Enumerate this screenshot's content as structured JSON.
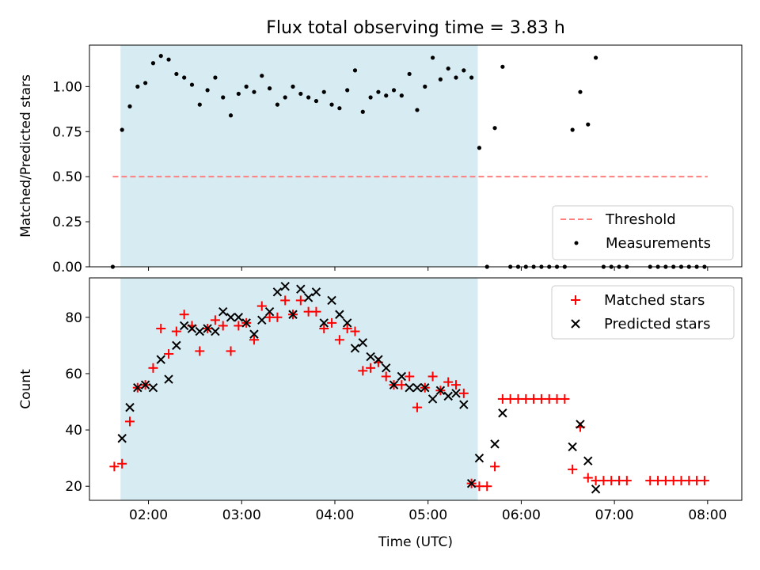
{
  "chart_data": [
    {
      "type": "scatter",
      "title": "Flux total observing time = 3.83 h",
      "xlabel": "",
      "ylabel": "Matched/Predicted stars",
      "xlim": [
        "01:22",
        "08:22"
      ],
      "ylim": [
        0,
        1.23
      ],
      "yticks": [
        0.0,
        0.25,
        0.5,
        0.75,
        1.0
      ],
      "ytick_labels": [
        "0.00",
        "0.25",
        "0.50",
        "0.75",
        "1.00"
      ],
      "shaded_window": [
        "01:42",
        "05:32"
      ],
      "threshold": {
        "name": "Threshold",
        "value": 0.5,
        "x_start": "01:37",
        "x_end": "08:00",
        "color": "#ff7f7f"
      },
      "series": [
        {
          "name": "Measurements",
          "color": "#000000",
          "points": [
            [
              "01:37",
              0.0
            ],
            [
              "01:43",
              0.76
            ],
            [
              "01:48",
              0.89
            ],
            [
              "01:53",
              1.0
            ],
            [
              "01:58",
              1.02
            ],
            [
              "02:03",
              1.13
            ],
            [
              "02:08",
              1.17
            ],
            [
              "02:13",
              1.15
            ],
            [
              "02:18",
              1.07
            ],
            [
              "02:23",
              1.05
            ],
            [
              "02:28",
              1.01
            ],
            [
              "02:33",
              0.9
            ],
            [
              "02:38",
              0.98
            ],
            [
              "02:43",
              1.05
            ],
            [
              "02:48",
              0.94
            ],
            [
              "02:53",
              0.84
            ],
            [
              "02:58",
              0.96
            ],
            [
              "03:03",
              1.0
            ],
            [
              "03:08",
              0.97
            ],
            [
              "03:13",
              1.06
            ],
            [
              "03:18",
              0.99
            ],
            [
              "03:23",
              0.9
            ],
            [
              "03:28",
              0.94
            ],
            [
              "03:33",
              1.0
            ],
            [
              "03:38",
              0.96
            ],
            [
              "03:43",
              0.94
            ],
            [
              "03:48",
              0.92
            ],
            [
              "03:53",
              0.97
            ],
            [
              "03:58",
              0.9
            ],
            [
              "04:03",
              0.88
            ],
            [
              "04:08",
              0.98
            ],
            [
              "04:13",
              1.09
            ],
            [
              "04:18",
              0.86
            ],
            [
              "04:23",
              0.94
            ],
            [
              "04:28",
              0.97
            ],
            [
              "04:33",
              0.95
            ],
            [
              "04:38",
              0.98
            ],
            [
              "04:43",
              0.95
            ],
            [
              "04:48",
              1.07
            ],
            [
              "04:53",
              0.87
            ],
            [
              "04:58",
              1.0
            ],
            [
              "05:03",
              1.16
            ],
            [
              "05:08",
              1.04
            ],
            [
              "05:13",
              1.1
            ],
            [
              "05:18",
              1.05
            ],
            [
              "05:23",
              1.09
            ],
            [
              "05:28",
              1.05
            ],
            [
              "05:33",
              0.66
            ],
            [
              "05:38",
              0.0
            ],
            [
              "05:43",
              0.77
            ],
            [
              "05:48",
              1.11
            ],
            [
              "05:53",
              0.0
            ],
            [
              "05:58",
              0.0
            ],
            [
              "06:03",
              0.0
            ],
            [
              "06:08",
              0.0
            ],
            [
              "06:13",
              0.0
            ],
            [
              "06:18",
              0.0
            ],
            [
              "06:23",
              0.0
            ],
            [
              "06:28",
              0.0
            ],
            [
              "06:33",
              0.76
            ],
            [
              "06:38",
              0.97
            ],
            [
              "06:43",
              0.79
            ],
            [
              "06:48",
              1.16
            ],
            [
              "06:53",
              0.0
            ],
            [
              "06:58",
              0.0
            ],
            [
              "07:03",
              0.0
            ],
            [
              "07:08",
              0.0
            ],
            [
              "07:23",
              0.0
            ],
            [
              "07:28",
              0.0
            ],
            [
              "07:33",
              0.0
            ],
            [
              "07:38",
              0.0
            ],
            [
              "07:43",
              0.0
            ],
            [
              "07:48",
              0.0
            ],
            [
              "07:53",
              0.0
            ],
            [
              "07:58",
              0.0
            ]
          ]
        }
      ],
      "legend": {
        "position": "lower-right",
        "entries": [
          "Threshold",
          "Measurements"
        ]
      }
    },
    {
      "type": "scatter",
      "title": "",
      "xlabel": "Time (UTC)",
      "ylabel": "Count",
      "xlim": [
        "01:22",
        "08:22"
      ],
      "ylim": [
        15,
        94
      ],
      "yticks": [
        20,
        40,
        60,
        80
      ],
      "xticks": [
        "02:00",
        "03:00",
        "04:00",
        "05:00",
        "06:00",
        "07:00",
        "08:00"
      ],
      "shaded_window": [
        "01:42",
        "05:32"
      ],
      "series": [
        {
          "name": "Matched stars",
          "color": "#ff0000",
          "marker": "plus",
          "points": [
            [
              "01:38",
              27
            ],
            [
              "01:43",
              28
            ],
            [
              "01:48",
              43
            ],
            [
              "01:53",
              55
            ],
            [
              "01:58",
              56
            ],
            [
              "02:03",
              62
            ],
            [
              "02:08",
              76
            ],
            [
              "02:13",
              67
            ],
            [
              "02:18",
              75
            ],
            [
              "02:23",
              81
            ],
            [
              "02:28",
              77
            ],
            [
              "02:33",
              68
            ],
            [
              "02:38",
              76
            ],
            [
              "02:43",
              79
            ],
            [
              "02:48",
              77
            ],
            [
              "02:53",
              68
            ],
            [
              "02:58",
              77
            ],
            [
              "03:03",
              78
            ],
            [
              "03:08",
              72
            ],
            [
              "03:13",
              84
            ],
            [
              "03:18",
              80
            ],
            [
              "03:23",
              80
            ],
            [
              "03:28",
              86
            ],
            [
              "03:33",
              81
            ],
            [
              "03:38",
              86
            ],
            [
              "03:43",
              82
            ],
            [
              "03:48",
              82
            ],
            [
              "03:53",
              76
            ],
            [
              "03:58",
              78
            ],
            [
              "04:03",
              72
            ],
            [
              "04:08",
              76
            ],
            [
              "04:13",
              75
            ],
            [
              "04:18",
              61
            ],
            [
              "04:23",
              62
            ],
            [
              "04:28",
              64
            ],
            [
              "04:33",
              59
            ],
            [
              "04:38",
              56
            ],
            [
              "04:43",
              56
            ],
            [
              "04:48",
              59
            ],
            [
              "04:53",
              48
            ],
            [
              "04:58",
              55
            ],
            [
              "05:03",
              59
            ],
            [
              "05:08",
              54
            ],
            [
              "05:13",
              57
            ],
            [
              "05:18",
              56
            ],
            [
              "05:23",
              53
            ],
            [
              "05:28",
              21
            ],
            [
              "05:33",
              20
            ],
            [
              "05:38",
              20
            ],
            [
              "05:43",
              27
            ],
            [
              "05:48",
              51
            ],
            [
              "05:53",
              51
            ],
            [
              "05:58",
              51
            ],
            [
              "06:03",
              51
            ],
            [
              "06:08",
              51
            ],
            [
              "06:13",
              51
            ],
            [
              "06:18",
              51
            ],
            [
              "06:23",
              51
            ],
            [
              "06:28",
              51
            ],
            [
              "06:33",
              26
            ],
            [
              "06:38",
              41
            ],
            [
              "06:43",
              23
            ],
            [
              "06:48",
              22
            ],
            [
              "06:53",
              22
            ],
            [
              "06:58",
              22
            ],
            [
              "07:03",
              22
            ],
            [
              "07:08",
              22
            ],
            [
              "07:23",
              22
            ],
            [
              "07:28",
              22
            ],
            [
              "07:33",
              22
            ],
            [
              "07:38",
              22
            ],
            [
              "07:43",
              22
            ],
            [
              "07:48",
              22
            ],
            [
              "07:53",
              22
            ],
            [
              "07:58",
              22
            ]
          ]
        },
        {
          "name": "Predicted stars",
          "color": "#000000",
          "marker": "x",
          "points": [
            [
              "01:43",
              37
            ],
            [
              "01:48",
              48
            ],
            [
              "01:53",
              55
            ],
            [
              "01:58",
              56
            ],
            [
              "02:03",
              55
            ],
            [
              "02:08",
              65
            ],
            [
              "02:13",
              58
            ],
            [
              "02:18",
              70
            ],
            [
              "02:23",
              77
            ],
            [
              "02:28",
              76
            ],
            [
              "02:33",
              75
            ],
            [
              "02:38",
              76
            ],
            [
              "02:43",
              75
            ],
            [
              "02:48",
              82
            ],
            [
              "02:53",
              80
            ],
            [
              "02:58",
              80
            ],
            [
              "03:03",
              78
            ],
            [
              "03:08",
              74
            ],
            [
              "03:13",
              79
            ],
            [
              "03:18",
              82
            ],
            [
              "03:23",
              89
            ],
            [
              "03:28",
              91
            ],
            [
              "03:33",
              81
            ],
            [
              "03:38",
              90
            ],
            [
              "03:43",
              87
            ],
            [
              "03:48",
              89
            ],
            [
              "03:53",
              78
            ],
            [
              "03:58",
              86
            ],
            [
              "04:03",
              81
            ],
            [
              "04:08",
              78
            ],
            [
              "04:13",
              69
            ],
            [
              "04:18",
              71
            ],
            [
              "04:23",
              66
            ],
            [
              "04:28",
              65
            ],
            [
              "04:33",
              62
            ],
            [
              "04:38",
              56
            ],
            [
              "04:43",
              59
            ],
            [
              "04:48",
              55
            ],
            [
              "04:53",
              55
            ],
            [
              "04:58",
              55
            ],
            [
              "05:03",
              51
            ],
            [
              "05:08",
              54
            ],
            [
              "05:13",
              52
            ],
            [
              "05:18",
              53
            ],
            [
              "05:23",
              49
            ],
            [
              "05:28",
              21
            ],
            [
              "05:33",
              30
            ],
            [
              "05:43",
              35
            ],
            [
              "05:48",
              46
            ],
            [
              "06:33",
              34
            ],
            [
              "06:38",
              42
            ],
            [
              "06:43",
              29
            ],
            [
              "06:48",
              19
            ]
          ]
        }
      ],
      "legend": {
        "position": "top-right",
        "entries": [
          "Matched stars",
          "Predicted stars"
        ]
      }
    }
  ]
}
